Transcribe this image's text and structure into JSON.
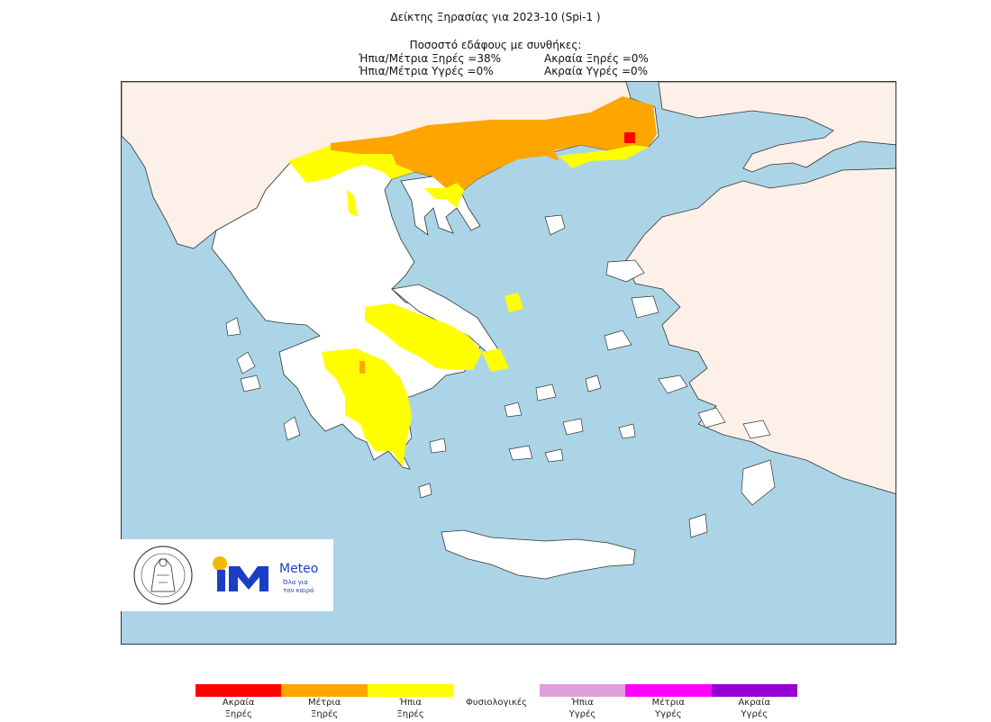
{
  "header": {
    "title": "Δείκτης Ξηρασίας για 2023-10 (Spi-1 )",
    "subtitle": "Ποσοστό εδάφους με συνθήκες:",
    "stats": [
      {
        "label": "Ήπια/Μέτρια Ξηρές =38%"
      },
      {
        "label": "Ακραία Ξηρές =0%"
      },
      {
        "label": "Ήπια/Μέτρια Υγρές =0%"
      },
      {
        "label": "Ακραία Υγρές =0%"
      }
    ]
  },
  "map": {
    "sea_color": "#abd5e6",
    "land_color": "#fdf0e9",
    "greece_normal_color": "#ffffff",
    "border_color": "#333333"
  },
  "logos": {
    "meteo_name": "Meteo",
    "meteo_tagline_1": "Όλα για",
    "meteo_tagline_2": "τον καιρό",
    "meteo_blue": "#1b3fc4",
    "meteo_sun": "#f5b800"
  },
  "legend": [
    {
      "line1": "Ακραία",
      "line2": "Ξηρές",
      "color": "#ff0000"
    },
    {
      "line1": "Μέτρια",
      "line2": "Ξηρές",
      "color": "#ffa500"
    },
    {
      "line1": "Ήπια",
      "line2": "Ξηρές",
      "color": "#ffff00"
    },
    {
      "line1": "Φυσιολογικές",
      "line2": "",
      "color": "#ffffff"
    },
    {
      "line1": "Ήπια",
      "line2": "Υγρές",
      "color": "#dda0dd"
    },
    {
      "line1": "Μέτρια",
      "line2": "Υγρές",
      "color": "#ff00ff"
    },
    {
      "line1": "Ακραία",
      "line2": "Υγρές",
      "color": "#9400d3"
    }
  ]
}
